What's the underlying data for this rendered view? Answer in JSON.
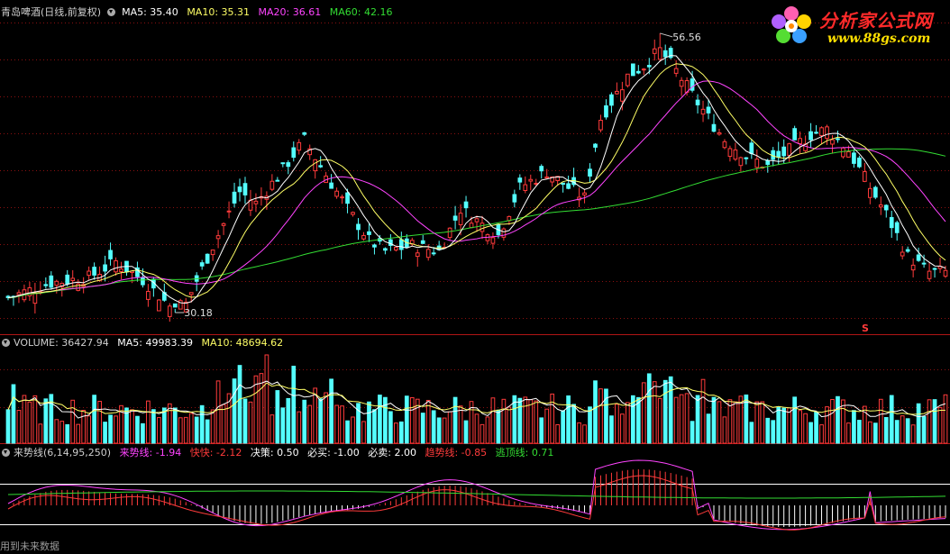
{
  "price_panel": {
    "stock_name": "青岛啤酒(日线,前复权)",
    "ma5_label": "MA5: 35.40",
    "ma10_label": "MA10: 35.31",
    "ma20_label": "MA20: 36.61",
    "ma60_label": "MA60: 42.16",
    "high_label": "56.56",
    "low_label": "30.18",
    "marker": "S"
  },
  "volume_panel": {
    "volume_label": "VOLUME: 36427.94",
    "ma5_label": "MA5: 49983.39",
    "ma10_label": "MA10: 48694.62"
  },
  "indicator_panel": {
    "name_label": "来势线(6,14,95,250)",
    "laishi_label": "来势线: -1.94",
    "kuaikuai_label": "快快: -2.12",
    "juece_label": "决策: 0.50",
    "bimai_label": "必买: -1.00",
    "bimai2_label": "必卖: 2.00",
    "qushi_label": "趋势线: -0.85",
    "taoding_label": "逃顶线: 0.71"
  },
  "logo": {
    "title": "分析家公式网",
    "url": "www.88gs.com"
  },
  "footer": {
    "text": "用到未来数据"
  },
  "colors": {
    "background": "#000000",
    "up": "#ff3b3b",
    "down": "#54ffff",
    "ma5": "#ffffff",
    "ma10": "#ffff66",
    "ma20": "#ff44ff",
    "ma60": "#33dd33",
    "grid": "#8a1010"
  },
  "chart_data": [
    {
      "type": "candlestick",
      "title": "青岛啤酒(日线,前复权)",
      "n": 175,
      "y_axis_range": [
        29.5,
        58.0
      ],
      "high_point": 56.56,
      "low_point": 30.18,
      "anchors": [
        [
          0,
          31.6
        ],
        [
          8,
          33.0
        ],
        [
          15,
          33.5
        ],
        [
          20,
          35.0
        ],
        [
          25,
          33.3
        ],
        [
          30,
          30.8
        ],
        [
          33,
          31.0
        ],
        [
          38,
          36.5
        ],
        [
          43,
          41.6
        ],
        [
          46,
          40.5
        ],
        [
          50,
          43.0
        ],
        [
          55,
          46.5
        ],
        [
          58,
          44.0
        ],
        [
          63,
          40.0
        ],
        [
          67,
          37.0
        ],
        [
          70,
          36.0
        ],
        [
          75,
          36.5
        ],
        [
          80,
          36.0
        ],
        [
          84,
          40.0
        ],
        [
          88,
          38.5
        ],
        [
          91,
          37.5
        ],
        [
          95,
          42.0
        ],
        [
          100,
          43.5
        ],
        [
          104,
          42.0
        ],
        [
          107,
          41.0
        ],
        [
          110,
          48.5
        ],
        [
          115,
          52.5
        ],
        [
          118,
          53.5
        ],
        [
          121,
          55.0
        ],
        [
          124,
          53.0
        ],
        [
          128,
          50.0
        ],
        [
          133,
          46.5
        ],
        [
          137,
          45.0
        ],
        [
          141,
          44.0
        ],
        [
          145,
          45.5
        ],
        [
          149,
          47.0
        ],
        [
          152,
          47.5
        ],
        [
          156,
          45.5
        ],
        [
          160,
          42.0
        ],
        [
          163,
          39.5
        ],
        [
          167,
          35.5
        ],
        [
          171,
          34.0
        ],
        [
          174,
          34.0
        ]
      ],
      "series": [
        {
          "name": "MA5",
          "value_last": 35.4
        },
        {
          "name": "MA10",
          "value_last": 35.31
        },
        {
          "name": "MA20",
          "value_last": 36.61
        },
        {
          "name": "MA60",
          "value_last": 42.16
        }
      ]
    },
    {
      "type": "bar",
      "title": "VOLUME",
      "last_value": 36427.94,
      "ma5": 49983.39,
      "ma10": 48694.62
    },
    {
      "type": "line",
      "title": "来势线(6,14,95,250)",
      "series": [
        {
          "name": "来势线",
          "value_last": -1.94
        },
        {
          "name": "快快",
          "value_last": -2.12
        },
        {
          "name": "决策",
          "value_last": 0.5
        },
        {
          "name": "必买",
          "value_last": -1.0
        },
        {
          "name": "必卖",
          "value_last": 2.0
        },
        {
          "name": "趋势线",
          "value_last": -0.85
        },
        {
          "name": "逃顶线",
          "value_last": 0.71
        }
      ]
    }
  ]
}
